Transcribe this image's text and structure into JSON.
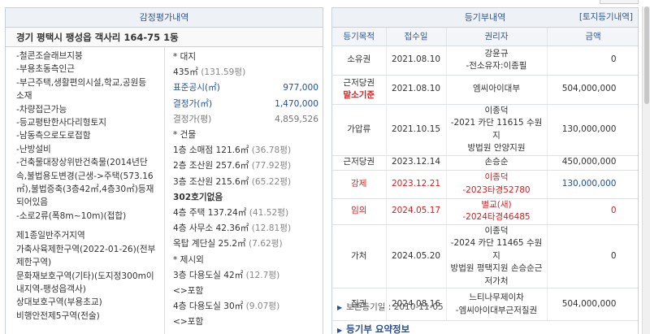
{
  "top_tab": "",
  "appraisal": {
    "title": "감정평가내역",
    "address": "경기 평택시 팽성읍 객사리 164-75 1동",
    "features": [
      "-철콘조슬래브지붕",
      "-부용초동측인근",
      "-부근주택,생활편의시설,학교,공원등",
      "소재",
      "-차량접근가능",
      "-등교평탄한사다리형토지",
      "-남동측으로도로접함",
      "-난방설비",
      "-건축물대장상위반건축물(2014년단",
      "속,불법용도변경(근생->주택(573.16",
      "㎡),불법증축(3층42㎡,4층30㎡)등재",
      "되어있음",
      "-소로2류(폭8m~10m)(접합)"
    ],
    "zoning": [
      "제1종일반주거지역",
      "가축사육제한구역(2022-01-26)(전부",
      "제한구역)",
      "문화재보호구역(기타)(도지정300m이",
      "내지역-팽성읍객사)",
      "상대보호구역(부용초교)",
      "비행안전제5구역(전술)"
    ],
    "land_header": "* 대지",
    "land_area": "435㎡",
    "land_area_py": "(131.59평)",
    "official_price_label": "표준공시(㎡)",
    "official_price_value": "977,000",
    "decided_price_label": "결정가(㎡)",
    "decided_price_value": "1,470,000",
    "decided_price_py_label": "결정가(평)",
    "decided_price_py_value": "4,859,526",
    "building_header": "* 건물",
    "buildings": [
      {
        "text": "1층 소매점 121.6㎡",
        "py": "(36.78평)"
      },
      {
        "text": "2층 조산원 257.6㎡",
        "py": "(77.92평)"
      },
      {
        "text": "3층 조산원 215.6㎡",
        "py": "(65.22평)"
      }
    ],
    "unit_302": "302호기없음",
    "buildings2": [
      {
        "text": "4층 주택 137.24㎡",
        "py": "(41.52평)"
      },
      {
        "text": "4층 사무소 42.36㎡",
        "py": "(12.81평)"
      },
      {
        "text": "옥탑 계단실 25.2㎡",
        "py": "(7.62평)"
      }
    ],
    "excluded_header": "* 제시외",
    "excluded": [
      {
        "text": "3층 다용도실 42㎡",
        "py": "(12.7평)"
      },
      {
        "text": "<>포함",
        "py": ""
      },
      {
        "text": "4층 다용도실 30㎡",
        "py": "(9.07평)"
      },
      {
        "text": "<>포함",
        "py": ""
      }
    ]
  },
  "registry": {
    "title": "등기부내역",
    "link": "[토지등기내역]",
    "columns": [
      "등기목적",
      "접수일",
      "권리자",
      "금액"
    ],
    "rows": [
      {
        "purpose": "소유권",
        "purpose2": "",
        "date": "2021.08.10",
        "holder": [
          "강윤규",
          "-전소유자:이종필"
        ],
        "amount": "0",
        "red": false
      },
      {
        "purpose": "근저당권",
        "purpose2": "말소기준",
        "date": "2021.08.10",
        "holder": [
          "엠씨아이대부"
        ],
        "amount": "504,000,000",
        "red": false
      },
      {
        "purpose": "가압류",
        "purpose2": "",
        "date": "2021.10.15",
        "holder": [
          "이종덕",
          "-2021 카단 11615 수원지",
          "방법원 안양지원"
        ],
        "amount": "130,000,000",
        "red": false
      },
      {
        "purpose": "근저당권",
        "purpose2": "",
        "date": "2023.12.14",
        "holder": [
          "손승순"
        ],
        "amount": "450,000,000",
        "red": false
      },
      {
        "purpose": "강제",
        "purpose2": "",
        "date": "2023.12.21",
        "holder": [
          "이종덕",
          "-2023타경52780"
        ],
        "amount": "130,000,000",
        "red": true
      },
      {
        "purpose": "임의",
        "purpose2": "",
        "date": "2024.05.17",
        "holder": [
          "별교(새)",
          "-2024타경46485"
        ],
        "amount": "0",
        "red": true
      },
      {
        "purpose": "가처",
        "purpose2": "",
        "date": "2024.05.20",
        "holder": [
          "이종덕",
          "-2024 카단 11465 수원지",
          "방법원 평택지원 손승순근",
          "저가처"
        ],
        "amount": "0",
        "red": false
      },
      {
        "purpose": "질권",
        "purpose2": "",
        "date": "2024.08.16",
        "holder": [
          "느티나무제이차",
          "-엠씨아이대부근저질권"
        ],
        "amount": "504,000,000",
        "red": false
      }
    ],
    "preservation": "보존등기일 : 2010-11-05",
    "summary_title": "등기부 요약정보"
  }
}
